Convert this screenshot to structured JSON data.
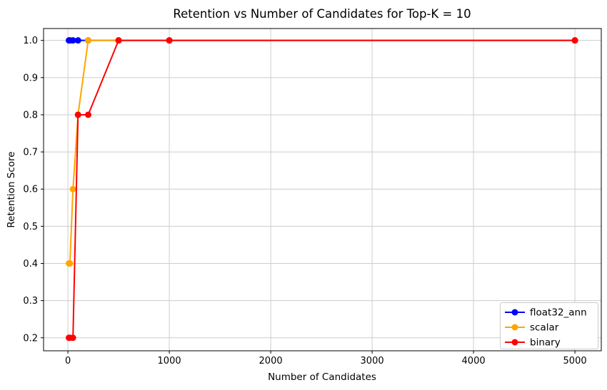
{
  "chart_data": {
    "type": "line",
    "title": "Retention vs Number of Candidates for Top-K = 10",
    "xlabel": "Number of Candidates",
    "ylabel": "Retention Score",
    "x": [
      10,
      20,
      50,
      100,
      200,
      500,
      1000,
      5000
    ],
    "series": [
      {
        "name": "float32_ann",
        "color": "#0000ff",
        "values": [
          1.0,
          1.0,
          1.0,
          1.0,
          1.0,
          1.0,
          1.0,
          1.0
        ]
      },
      {
        "name": "scalar",
        "color": "#ffa500",
        "values": [
          0.4,
          0.4,
          0.6,
          0.8,
          1.0,
          1.0,
          1.0,
          1.0
        ]
      },
      {
        "name": "binary",
        "color": "#ff0000",
        "values": [
          0.2,
          0.2,
          0.2,
          0.8,
          0.8,
          1.0,
          1.0,
          1.0
        ]
      }
    ],
    "xticks": [
      0,
      1000,
      2000,
      3000,
      4000,
      5000
    ],
    "yticks": [
      0.2,
      0.3,
      0.4,
      0.5,
      0.6,
      0.7,
      0.8,
      0.9,
      1.0
    ],
    "xlim": [
      -240,
      5260
    ],
    "ylim": [
      0.165,
      1.032
    ],
    "grid": true,
    "grid_color": "#cccccc",
    "spine_color": "#000000",
    "legend_position": "lower right",
    "legend_border_color": "#cccccc",
    "marker": "o"
  }
}
